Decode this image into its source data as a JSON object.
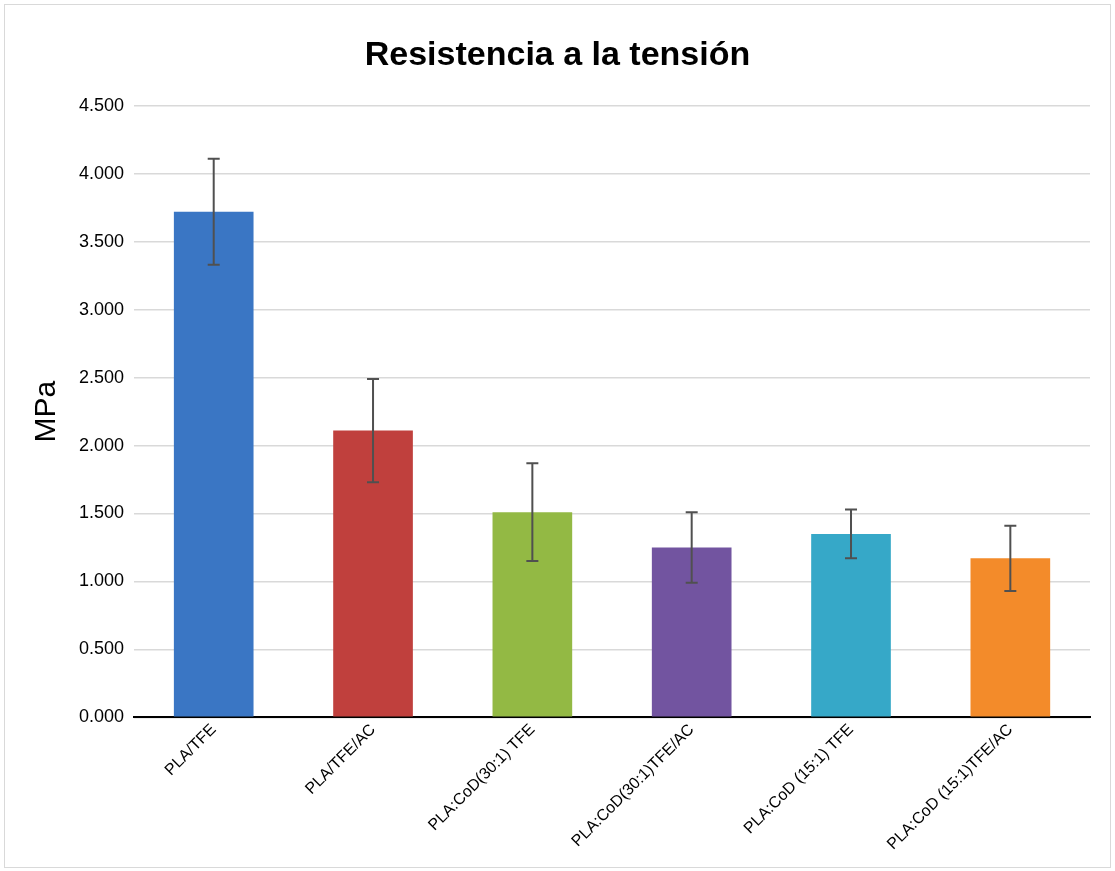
{
  "chart_data": {
    "type": "bar",
    "title": "Resistencia a la tensión",
    "ylabel": "MPa",
    "categories": [
      "PLA/TFE",
      "PLA/TFE/AC",
      "PLA:CoD(30:1) TFE",
      "PLA:CoD(30:1)TFE/AC",
      "PLA:CoD (15:1) TFE",
      "PLA:CoD (15:1)TFE/AC"
    ],
    "values": [
      3.72,
      2.11,
      1.51,
      1.25,
      1.35,
      1.17
    ],
    "errors": [
      0.39,
      0.38,
      0.36,
      0.26,
      0.18,
      0.24
    ],
    "colors": [
      "#3a76c4",
      "#c0403d",
      "#93b944",
      "#7254a0",
      "#36a8c8",
      "#f38b2a"
    ],
    "ylim": [
      0,
      4.5
    ],
    "yticks": [
      {
        "value": 0,
        "label": "0.000"
      },
      {
        "value": 0.5,
        "label": "0.500"
      },
      {
        "value": 1,
        "label": "1.000"
      },
      {
        "value": 1.5,
        "label": "1.500"
      },
      {
        "value": 2,
        "label": "2.000"
      },
      {
        "value": 2.5,
        "label": "2.500"
      },
      {
        "value": 3,
        "label": "3.000"
      },
      {
        "value": 3.5,
        "label": "3.500"
      },
      {
        "value": 4,
        "label": "4.000"
      },
      {
        "value": 4.5,
        "label": "4.500"
      }
    ],
    "grid": "y"
  }
}
